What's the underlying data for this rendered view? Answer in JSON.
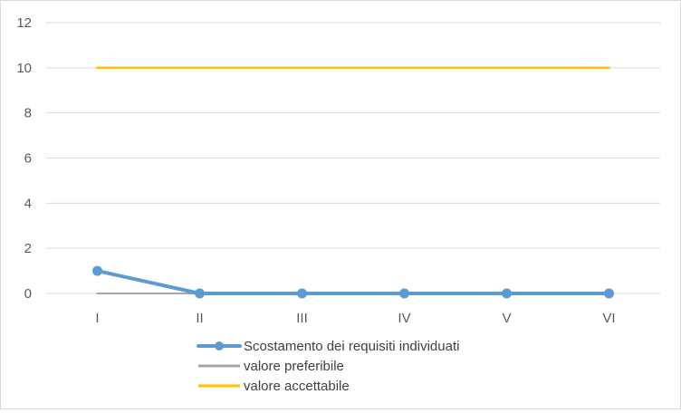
{
  "chart_data": {
    "type": "line",
    "categories": [
      "I",
      "II",
      "III",
      "IV",
      "V",
      "VI"
    ],
    "ylim": [
      0,
      12
    ],
    "yticks": [
      0,
      2,
      4,
      6,
      8,
      10,
      12
    ],
    "grid": true,
    "legend_position": "bottom",
    "series": [
      {
        "name": "Scostamento dei requisiti individuati",
        "values": [
          1,
          0,
          0,
          0,
          0,
          0
        ],
        "color": "#5b9bd5",
        "markers": true
      },
      {
        "name": "valore preferibile",
        "values": [
          0,
          0,
          0,
          0,
          0,
          0
        ],
        "color": "#a5a5a5",
        "markers": false
      },
      {
        "name": "valore accettabile",
        "values": [
          10,
          10,
          10,
          10,
          10,
          10
        ],
        "color": "#ffc000",
        "markers": false
      }
    ]
  }
}
